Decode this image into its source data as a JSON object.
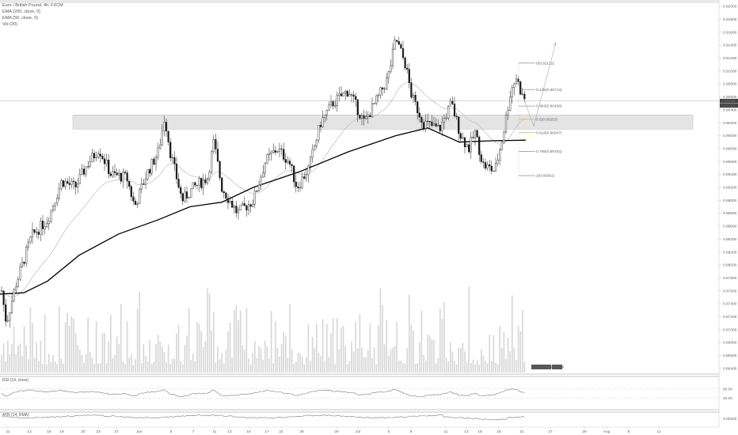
{
  "legend": {
    "title": "Euro / British Pound, 4h, FXCM",
    "ema200": "EMA (200, close, 0)",
    "ema50": "EMA (50, close, 0)",
    "vol": "Vol (20)"
  },
  "panes": {
    "rsi_label": "RSI (14, close)",
    "atr_label": "ATR (14, RMA)"
  },
  "chart_data": {
    "type": "candlestick",
    "price_axis": {
      "ylim": [
        0.863,
        0.92
      ],
      "ticks": [
        "0.92000",
        "0.91800",
        "0.91600",
        "0.91400",
        "0.91200",
        "0.91000",
        "0.90800",
        "0.90600",
        "0.90400",
        "0.90200",
        "0.90000",
        "0.89800",
        "0.89600",
        "0.89400",
        "0.89200",
        "0.89000",
        "0.88800",
        "0.88600",
        "0.88400",
        "0.88200",
        "0.88000",
        "0.87800",
        "0.87600",
        "0.87400",
        "0.87200",
        "0.87000",
        "0.86800",
        "0.86600",
        "0.86400"
      ],
      "current_price": "0.90538",
      "current_price_2": "0.90737"
    },
    "date_axis": {
      "ticks": [
        "11",
        "13",
        "15",
        "19",
        "20",
        "23",
        "27",
        "Jun",
        "5",
        "7",
        "11",
        "13",
        "15",
        "17",
        "22",
        "25",
        "29",
        "Jul",
        "5",
        "9",
        "11",
        "13",
        "15",
        "18",
        "21",
        "27",
        "29",
        "Aug",
        "5",
        "11"
      ]
    },
    "support_zone": [
      0.901,
      0.9032
    ],
    "fibonacci": [
      {
        "label": "0(0.91122)",
        "value": 0.91122
      },
      {
        "label": "0.236(0.90713)",
        "value": 0.90713
      },
      {
        "label": "0.382(0.90458)",
        "value": 0.90458
      },
      {
        "label": "0.5(0.90253)",
        "value": 0.90253
      },
      {
        "label": "0.618(0.90047)",
        "value": 0.90047
      },
      {
        "label": "0.786(0.89754)",
        "value": 0.89754
      },
      {
        "label": "1(0.89381)",
        "value": 0.89381
      }
    ],
    "volume_labels": [
      "1.231K",
      "2.101K",
      "4.117K"
    ],
    "rsi_levels": [
      "60.00",
      "40.00"
    ],
    "atr_value": "0.00200",
    "colors": {
      "up": "#ffffff",
      "down": "#1a1a1a",
      "ema200": "#000000",
      "ema50": "#bdbdbd",
      "volume": "#d6d6d6",
      "zone": "#e4e4e4",
      "fib_highlight": "#f0a500"
    }
  }
}
